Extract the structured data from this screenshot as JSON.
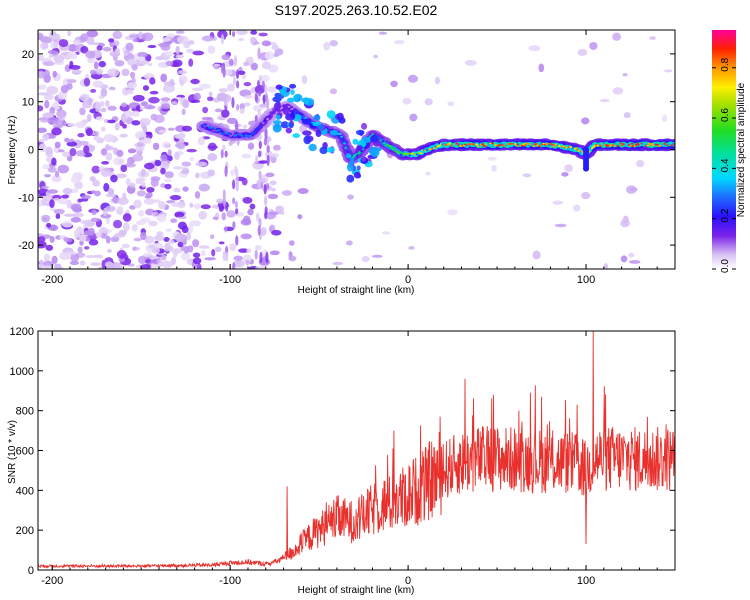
{
  "title": "S197.2025.263.10.52.E02",
  "chart_data": [
    {
      "type": "heatmap",
      "name": "spectrogram",
      "xlabel": "Height of straight line (km)",
      "ylabel": "Frequency (Hz)",
      "xlim": [
        -208,
        150
      ],
      "ylim": [
        -25,
        25
      ],
      "xticks": [
        -200,
        -100,
        0,
        100
      ],
      "yticks": [
        -20,
        -10,
        0,
        10,
        20
      ],
      "colorbar": {
        "label": "Normalized spectral amplitude",
        "range": [
          0,
          0.95
        ],
        "ticks": [
          0.0,
          0.2,
          0.4,
          0.6,
          0.8
        ],
        "tick_labels": [
          "0.0",
          "0.2",
          "0.4",
          "0.6",
          "0.8"
        ]
      },
      "ridge": {
        "x": [
          -115,
          -100,
          -88,
          -75,
          -68,
          -60,
          -52,
          -45,
          -38,
          -32,
          -28,
          -24,
          -20,
          -16,
          -12,
          -8,
          -4,
          0,
          5,
          10,
          20,
          30,
          40,
          60,
          80,
          95,
          100,
          105,
          120,
          140,
          150
        ],
        "y": [
          5,
          3,
          3,
          8,
          9,
          7,
          5,
          4,
          3,
          -2,
          -1,
          1,
          3,
          2,
          1,
          0,
          -1,
          -1,
          -1,
          0,
          1,
          1,
          1,
          1,
          1,
          0,
          -1,
          1,
          1,
          1,
          1
        ],
        "amplitude": [
          0.3,
          0.3,
          0.3,
          0.15,
          0.2,
          0.3,
          0.4,
          0.4,
          0.4,
          0.5,
          0.5,
          0.5,
          0.45,
          0.5,
          0.55,
          0.6,
          0.6,
          0.65,
          0.7,
          0.75,
          0.8,
          0.85,
          0.85,
          0.85,
          0.85,
          0.8,
          0.7,
          0.85,
          0.9,
          0.9,
          0.9
        ]
      }
    },
    {
      "type": "line",
      "name": "snr",
      "xlabel": "Height of straight line (km)",
      "ylabel": "SNR (10 * v/v)",
      "xlim": [
        -208,
        150
      ],
      "ylim": [
        0,
        1200
      ],
      "xticks": [
        -200,
        -100,
        0,
        100
      ],
      "yticks": [
        0,
        200,
        400,
        600,
        800,
        1000,
        1200
      ],
      "color": "#e8302c",
      "envelope": {
        "x": [
          -208,
          -150,
          -110,
          -100,
          -90,
          -80,
          -75,
          -70,
          -65,
          -60,
          -55,
          -50,
          -45,
          -40,
          -35,
          -30,
          -25,
          -20,
          -15,
          -10,
          -5,
          0,
          5,
          10,
          15,
          20,
          25,
          30,
          40,
          50,
          60,
          70,
          80,
          90,
          95,
          100,
          105,
          110,
          120,
          130,
          140,
          150
        ],
        "y": [
          20,
          20,
          25,
          35,
          40,
          30,
          40,
          60,
          90,
          130,
          170,
          200,
          230,
          260,
          250,
          240,
          270,
          300,
          330,
          330,
          350,
          380,
          400,
          430,
          470,
          500,
          520,
          540,
          560,
          560,
          555,
          550,
          545,
          540,
          530,
          500,
          560,
          560,
          560,
          555,
          555,
          560
        ]
      },
      "spikes": [
        {
          "x": -68,
          "y": 420
        },
        {
          "x": -46,
          "y": 340
        },
        {
          "x": -8,
          "y": 700
        },
        {
          "x": 18,
          "y": 770
        },
        {
          "x": 32,
          "y": 960
        },
        {
          "x": 48,
          "y": 880
        },
        {
          "x": 75,
          "y": 870
        },
        {
          "x": 95,
          "y": 830
        },
        {
          "x": 100,
          "y": 130
        },
        {
          "x": 104,
          "y": 1200
        }
      ]
    }
  ]
}
